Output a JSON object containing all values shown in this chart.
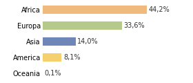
{
  "categories": [
    "Africa",
    "Europa",
    "Asia",
    "America",
    "Oceania"
  ],
  "values": [
    44.2,
    33.6,
    14.0,
    8.1,
    0.1
  ],
  "labels": [
    "44,2%",
    "33,6%",
    "14,0%",
    "8,1%",
    "0,1%"
  ],
  "bar_colors": [
    "#f0b97e",
    "#b5c98a",
    "#6e86b8",
    "#f5d06e",
    "#e8e8e8"
  ],
  "background_color": "#ffffff",
  "xlim": [
    0,
    62
  ],
  "label_fontsize": 7.0,
  "tick_fontsize": 7.0,
  "bar_height": 0.55
}
